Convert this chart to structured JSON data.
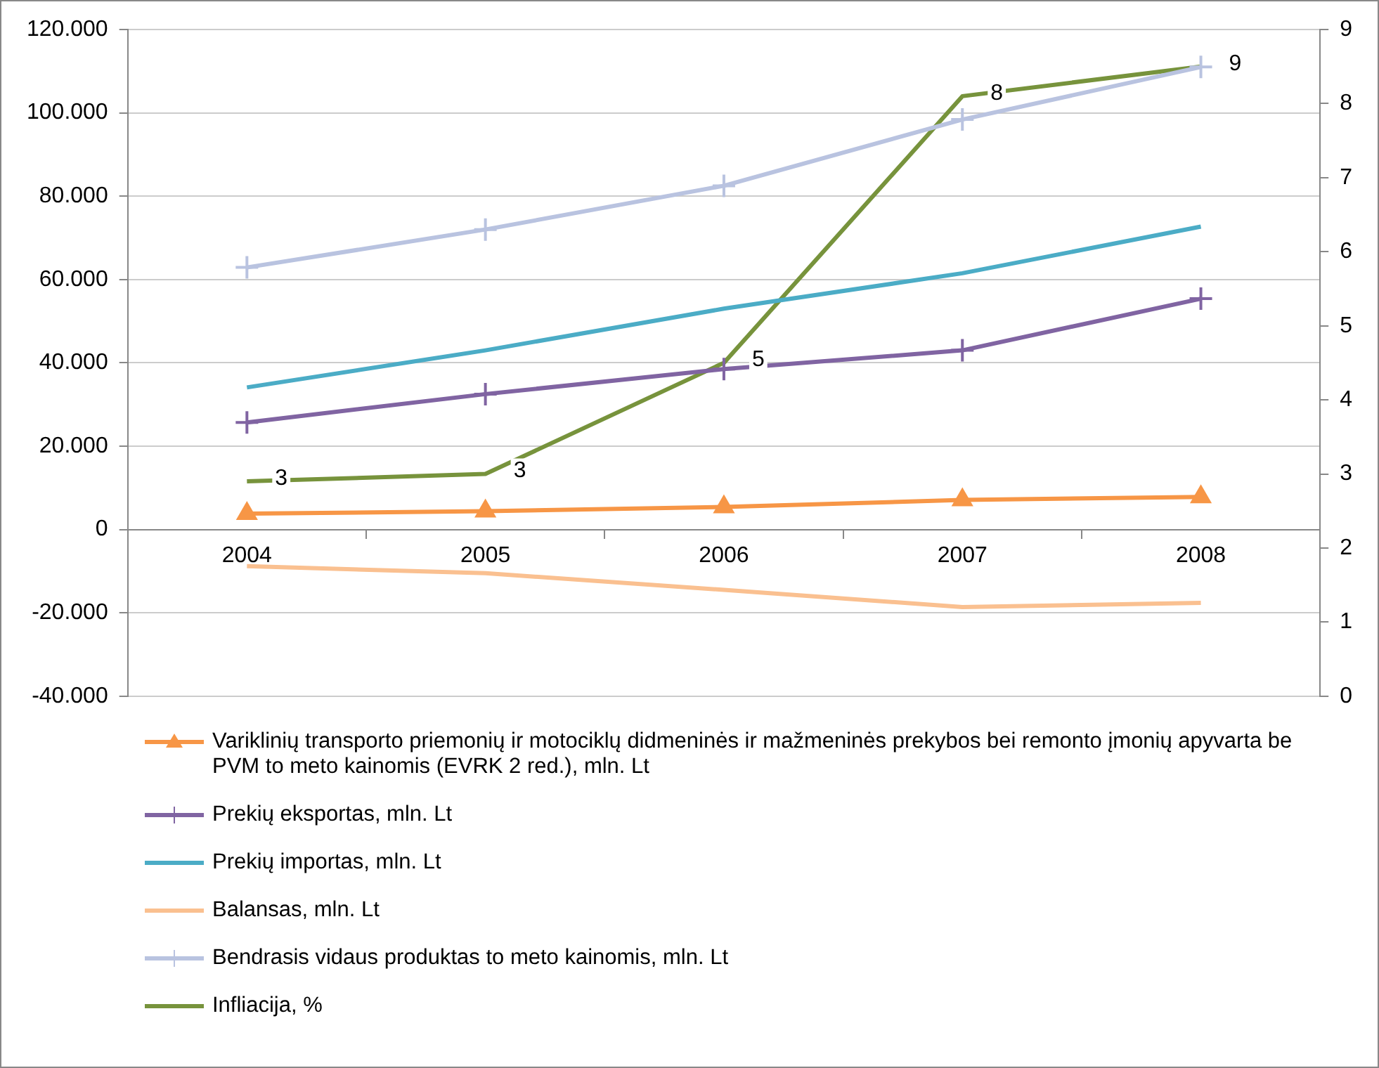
{
  "chart_data": {
    "type": "line",
    "categories": [
      "2004",
      "2005",
      "2006",
      "2007",
      "2008"
    ],
    "series": [
      {
        "name": "Variklinių transporto priemonių ir motociklų didmeninės ir mažmeninės prekybos bei remonto įmonių apyvarta  be PVM to meto kainomis  (EVRK 2 red.), mln. Lt",
        "color": "#f79646",
        "marker": "triangle",
        "values": [
          3800,
          4400,
          5400,
          7100,
          7800
        ]
      },
      {
        "name": "Prekių eksportas, mln. Lt",
        "color": "#8064a2",
        "marker": "cross",
        "values": [
          25700,
          32500,
          38500,
          43000,
          55400
        ]
      },
      {
        "name": "Prekių importas, mln. Lt",
        "color": "#4bacc6",
        "marker": "none",
        "values": [
          34100,
          43000,
          53000,
          61500,
          72700
        ]
      },
      {
        "name": "Balansas, mln. Lt",
        "color": "#fac090",
        "marker": "none",
        "values": [
          -8800,
          -10500,
          -14500,
          -18600,
          -17600
        ]
      },
      {
        "name": "Bendrasis vidaus produktas to meto kainomis, mln. Lt",
        "color": "#b9c3e0",
        "marker": "cross",
        "values": [
          62900,
          72000,
          82500,
          98400,
          111000
        ]
      },
      {
        "name": "Infliacija, %",
        "color": "#77933c",
        "marker": "none",
        "axis": "y2",
        "values": [
          2.9,
          3.0,
          4.5,
          8.1,
          8.5
        ],
        "value_labels": [
          "3",
          "3",
          "5",
          "8",
          "9"
        ]
      }
    ],
    "ylim": [
      -40000,
      120000
    ],
    "yticks": [
      {
        "value": -40000,
        "label": "-40.000"
      },
      {
        "value": -20000,
        "label": "-20.000"
      },
      0,
      {
        "value": 20000,
        "label": "20.000"
      },
      {
        "value": 40000,
        "label": "40.000"
      },
      {
        "value": 60000,
        "label": "60.000"
      },
      {
        "value": 80000,
        "label": "80.000"
      },
      {
        "value": 100000,
        "label": "100.000"
      },
      {
        "value": 120000,
        "label": "120.000"
      }
    ],
    "y2lim": [
      0,
      9
    ],
    "y2ticks": [
      0,
      1,
      2,
      3,
      4,
      5,
      6,
      7,
      8,
      9
    ],
    "grid": "y",
    "legend": "bottom"
  }
}
